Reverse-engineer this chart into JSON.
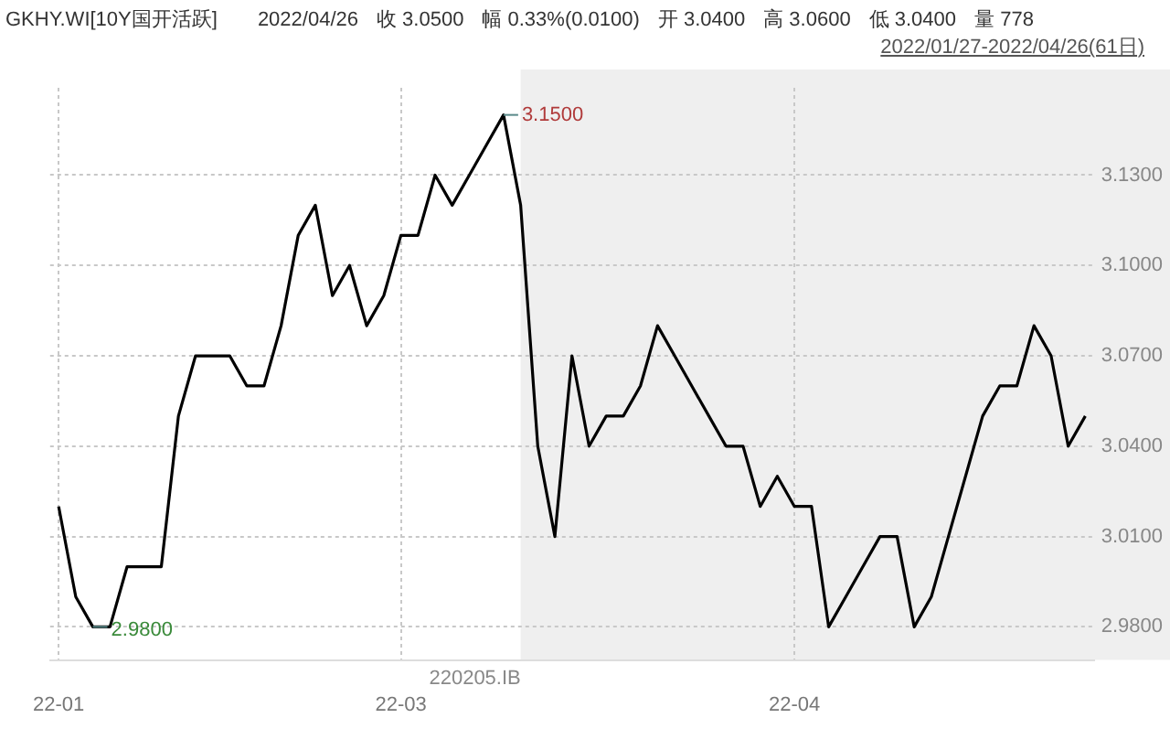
{
  "chart_data": {
    "type": "line",
    "title": "GKHY.WI[10Y国开活跃]",
    "subtitle": "2022/01/27-2022/04/26(61日)",
    "annotations": [
      "2022/04/26",
      "收 3.0500",
      "幅 0.33%(0.0100)",
      "开 3.0400",
      "高 3.0600",
      "低 3.0400",
      "量 778",
      "3.1500",
      "2.9800",
      "220205.IB"
    ],
    "categories": [
      "22-01",
      null,
      null,
      null,
      null,
      null,
      null,
      null,
      null,
      null,
      null,
      null,
      null,
      null,
      null,
      null,
      null,
      null,
      null,
      null,
      "22-03",
      null,
      null,
      null,
      null,
      null,
      null,
      null,
      null,
      null,
      null,
      null,
      null,
      null,
      null,
      null,
      null,
      null,
      null,
      null,
      null,
      null,
      null,
      "22-04",
      null,
      null,
      null,
      null,
      null,
      null,
      null,
      null,
      null,
      null,
      null,
      null,
      null,
      null,
      null,
      null,
      null
    ],
    "series": [
      {
        "color": "#000000",
        "values": [
          3.02,
          2.99,
          2.98,
          2.98,
          3.0,
          3.0,
          3.0,
          3.05,
          3.07,
          3.07,
          3.07,
          3.06,
          3.06,
          3.08,
          3.11,
          3.12,
          3.09,
          3.1,
          3.08,
          3.09,
          3.11,
          3.11,
          3.13,
          3.12,
          3.13,
          3.14,
          3.15,
          3.12,
          3.04,
          3.01,
          3.07,
          3.04,
          3.05,
          3.05,
          3.06,
          3.08,
          3.07,
          3.06,
          3.05,
          3.04,
          3.04,
          3.02,
          3.03,
          3.02,
          3.02,
          2.98,
          2.99,
          3.0,
          3.01,
          3.01,
          2.98,
          2.99,
          3.01,
          3.03,
          3.05,
          3.06,
          3.06,
          3.08,
          3.07,
          3.04,
          3.05
        ]
      }
    ],
    "ylim": [
      2.969,
      3.159
    ],
    "yticks": [
      {
        "value": 2.98,
        "label": "2.9800"
      },
      {
        "value": 3.01,
        "label": "3.0100"
      },
      {
        "value": 3.04,
        "label": "3.0400"
      },
      {
        "value": 3.07,
        "label": "3.0700"
      },
      {
        "value": 3.1,
        "label": "3.1000"
      },
      {
        "value": 3.13,
        "label": "3.1300"
      }
    ],
    "grid": true,
    "line_style": "solid",
    "marker": "none",
    "legend": false
  }
}
